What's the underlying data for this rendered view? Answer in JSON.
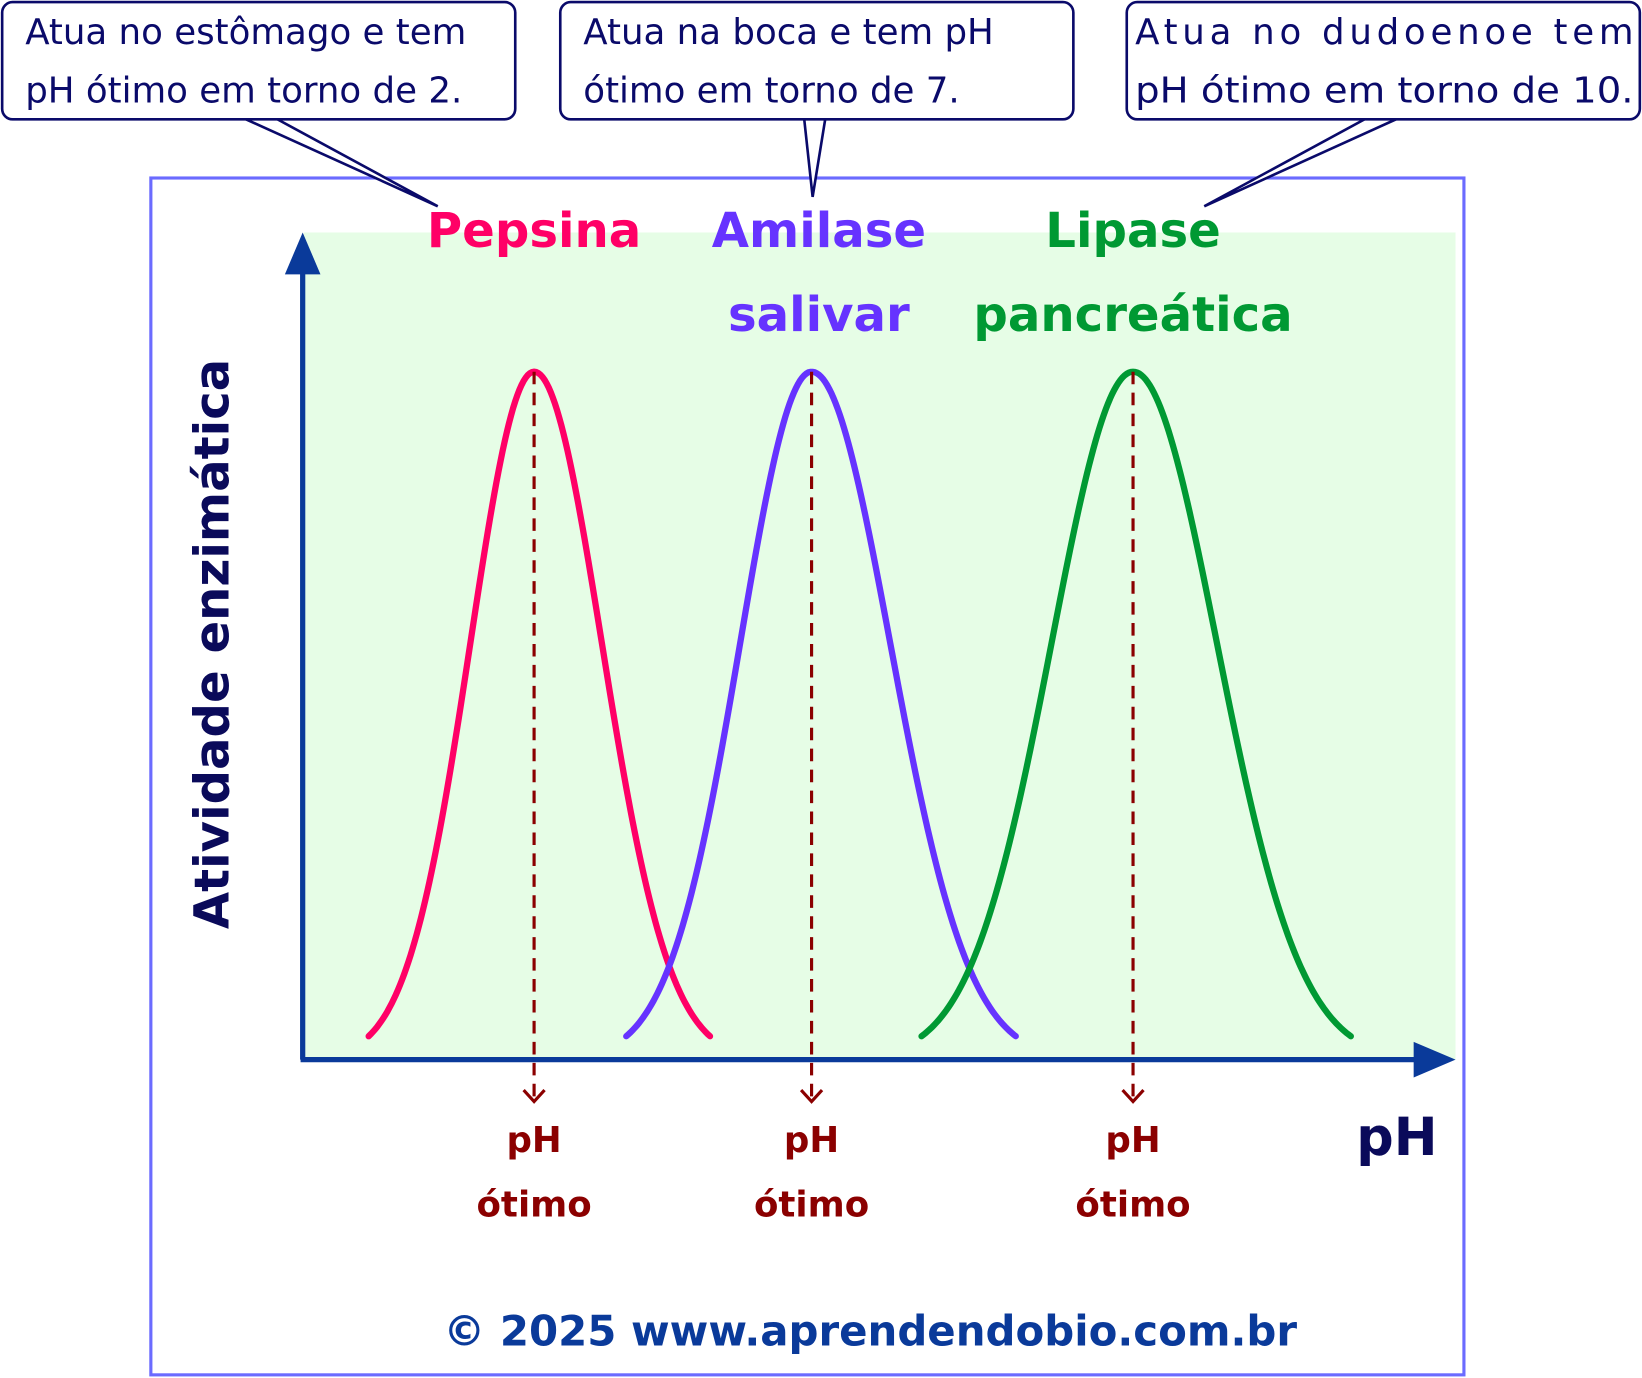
{
  "callouts": [
    {
      "line1": "Atua no estômago e tem",
      "line2": "pH ótimo em torno de 2."
    },
    {
      "line1": "Atua na boca e tem pH",
      "line2": "ótimo em torno de 7."
    },
    {
      "line1": "Atua  no  dudoenoe  tem",
      "line2": "pH ótimo em torno de 10."
    }
  ],
  "enzymes": [
    {
      "line1": "Pepsina",
      "line2": "",
      "color": "#ff0066",
      "optimal_ph": 2
    },
    {
      "line1": "Amilase",
      "line2": "salivar",
      "color": "#6633ff",
      "optimal_ph": 7
    },
    {
      "line1": "Lipase",
      "line2": "pancreática",
      "color": "#009933",
      "optimal_ph": 10
    }
  ],
  "optimum_label": {
    "line1": "pH",
    "line2": "ótimo"
  },
  "y_axis_label": "Atividade enzimática",
  "x_axis_label": "pH",
  "copyright": "© 2025 www.aprendendobio.com.br",
  "colors": {
    "frame": "#6b6bff",
    "plot_bg": "#e6fde6",
    "axis": "#0a3a9a",
    "dash": "#8b0000"
  }
}
